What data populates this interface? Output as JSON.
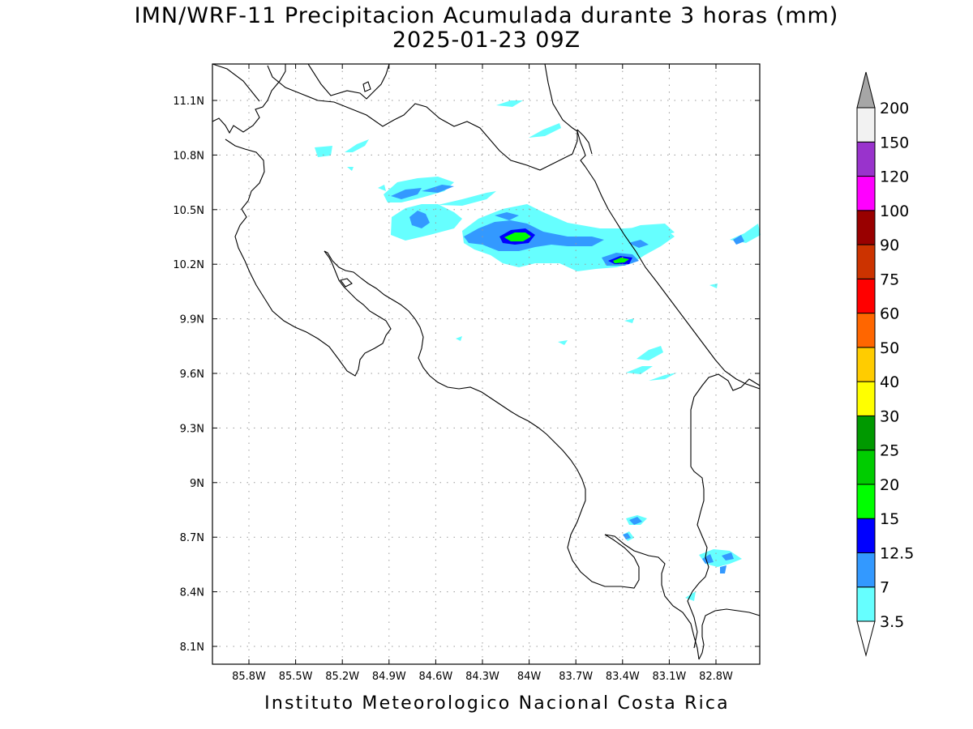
{
  "title": "IMN/WRF-11 Precipitacion Acumulada durante 3 horas (mm)",
  "subtitle": "2025-01-23 09Z",
  "footer": "Instituto Meteorologico Nacional Costa Rica",
  "lon_ticks": [
    "85.8W",
    "85.5W",
    "85.2W",
    "84.9W",
    "84.6W",
    "84.3W",
    "84W",
    "83.7W",
    "83.4W",
    "83.1W",
    "82.8W"
  ],
  "lat_ticks": [
    "11.1N",
    "10.8N",
    "10.5N",
    "10.2N",
    "9.9N",
    "9.6N",
    "9.3N",
    "9N",
    "8.7N",
    "8.4N",
    "8.1N"
  ],
  "colorbar": {
    "levels": [
      "3.5",
      "7",
      "12.5",
      "15",
      "20",
      "25",
      "30",
      "40",
      "50",
      "60",
      "75",
      "90",
      "100",
      "120",
      "150",
      "200"
    ],
    "colors": [
      "#ffffff",
      "#66ffff",
      "#3399ff",
      "#0000ff",
      "#00ff00",
      "#00cc00",
      "#009900",
      "#ffff00",
      "#ffcc00",
      "#ff6600",
      "#ff0000",
      "#cc3300",
      "#990000",
      "#ff00ff",
      "#9933cc",
      "#f2f2f2",
      "#a6a6a6"
    ]
  }
}
